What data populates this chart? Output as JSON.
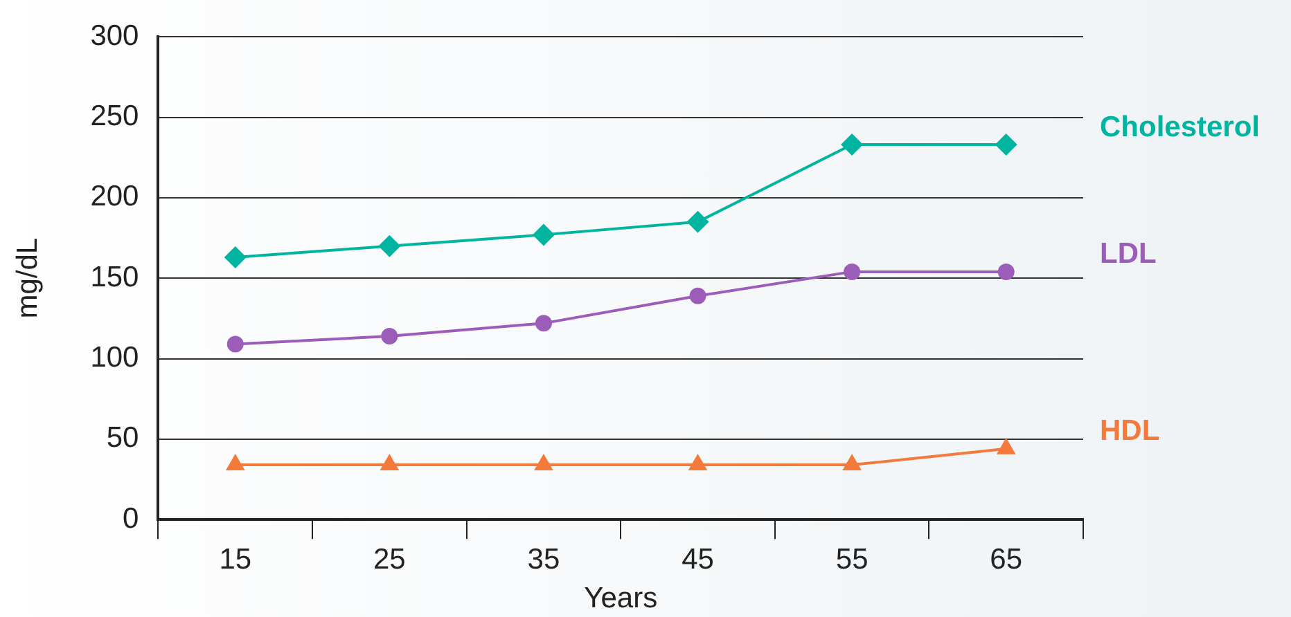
{
  "chart_data": {
    "type": "line",
    "xlabel": "Years",
    "ylabel": "mg/dL",
    "categories": [
      "15",
      "25",
      "35",
      "45",
      "55",
      "65"
    ],
    "series": [
      {
        "name": "Cholesterol",
        "color": "#00b4a0",
        "marker": "diamond",
        "values": [
          163,
          170,
          177,
          185,
          233,
          233
        ]
      },
      {
        "name": "LDL",
        "color": "#9b5db8",
        "marker": "circle",
        "values": [
          109,
          114,
          122,
          139,
          154,
          154
        ]
      },
      {
        "name": "HDL",
        "color": "#f47a3c",
        "marker": "triangle",
        "values": [
          34,
          34,
          34,
          34,
          34,
          44
        ]
      }
    ],
    "ylim": [
      0,
      300
    ],
    "yticks": [
      0,
      50,
      100,
      150,
      200,
      250,
      300
    ],
    "grid": "y",
    "legend": false
  }
}
